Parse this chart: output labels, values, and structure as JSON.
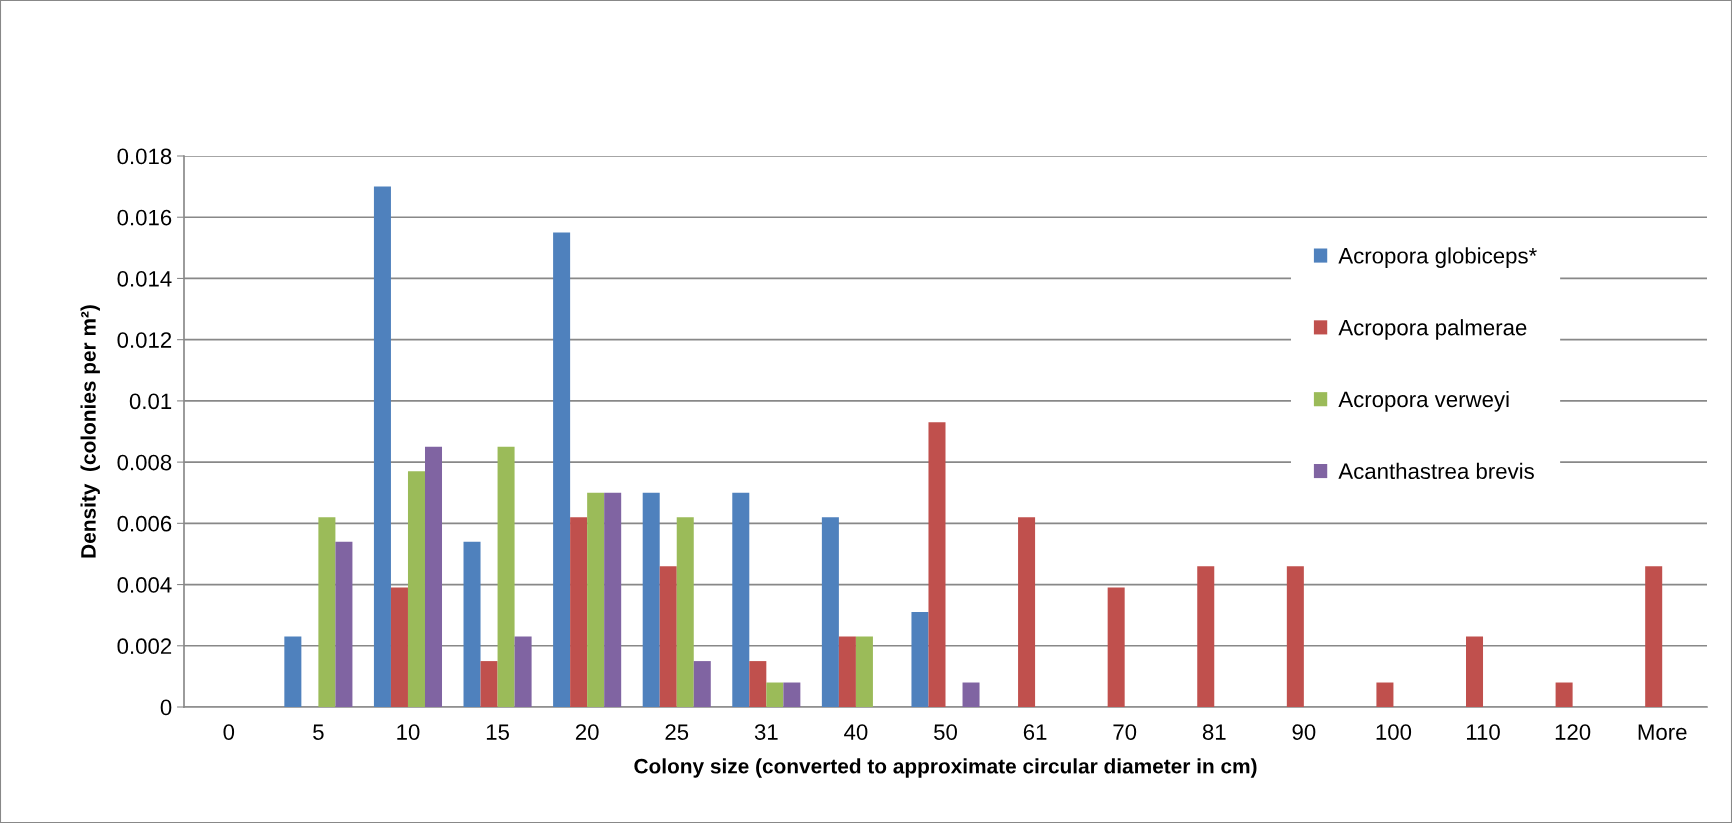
{
  "chart_data": {
    "type": "bar",
    "xlabel": "Colony size (converted to approximate circular diameter in cm)",
    "ylabel": "Density  (colonies per m²)",
    "categories": [
      "0",
      "5",
      "10",
      "15",
      "20",
      "25",
      "31",
      "40",
      "50",
      "61",
      "70",
      "81",
      "90",
      "100",
      "110",
      "120",
      "More"
    ],
    "series": [
      {
        "name": "Acropora globiceps*",
        "color": "#4f81bd",
        "values": [
          0,
          0.0023,
          0.017,
          0.0054,
          0.0155,
          0.007,
          0.007,
          0.0062,
          0.0031,
          0,
          0,
          0,
          0,
          0,
          0,
          0,
          0
        ]
      },
      {
        "name": "Acropora palmerae",
        "color": "#c0504d",
        "values": [
          0,
          0,
          0.0039,
          0.0015,
          0.0062,
          0.0046,
          0.0015,
          0.0023,
          0.0093,
          0.0062,
          0.0039,
          0.0046,
          0.0046,
          0.0008,
          0.0023,
          0.0008,
          0.0046
        ]
      },
      {
        "name": "Acropora verweyi",
        "color": "#9bbb59",
        "values": [
          0,
          0.0062,
          0.0077,
          0.0085,
          0.007,
          0.0062,
          0.0008,
          0.0023,
          0,
          0,
          0,
          0,
          0,
          0,
          0,
          0,
          0
        ]
      },
      {
        "name": "Acanthastrea brevis",
        "color": "#8064a2",
        "values": [
          0,
          0.0054,
          0.0085,
          0.0023,
          0.007,
          0.0015,
          0.0008,
          0,
          0.0008,
          0,
          0,
          0,
          0,
          0,
          0,
          0,
          0
        ]
      }
    ],
    "ylim": [
      0,
      0.018
    ],
    "yticks": [
      0,
      0.002,
      0.004,
      0.006,
      0.008,
      0.01,
      0.012,
      0.014,
      0.016,
      0.018
    ],
    "grid": "y",
    "legend": "right"
  }
}
